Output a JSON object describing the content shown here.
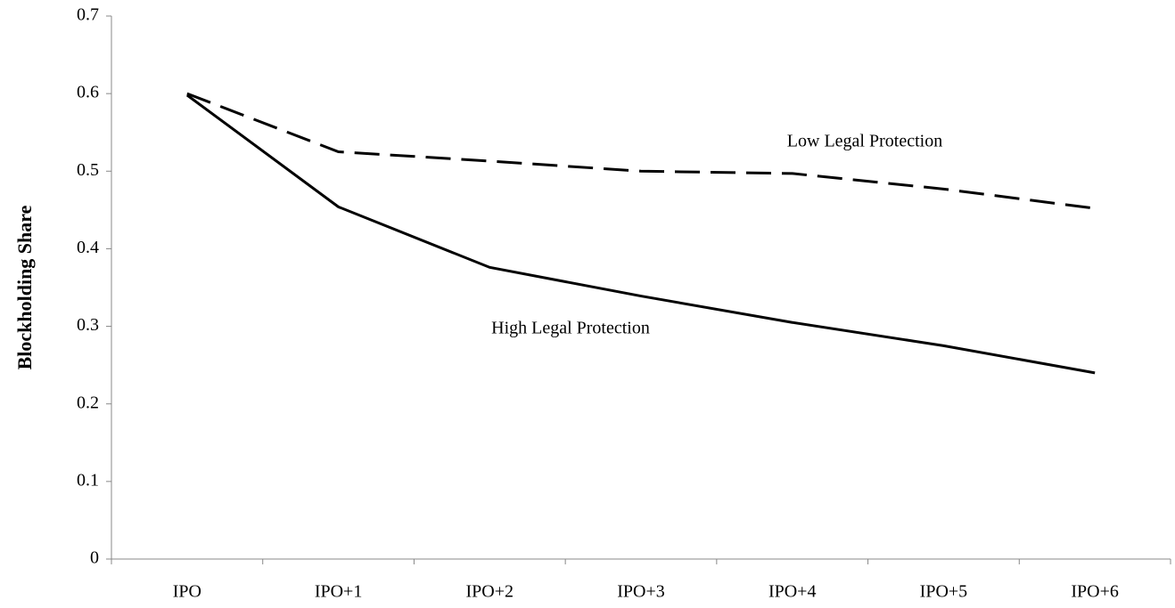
{
  "chart_data": {
    "type": "line",
    "y_label": "Blockholding Share",
    "categories": [
      "IPO",
      "IPO+1",
      "IPO+2",
      "IPO+3",
      "IPO+4",
      "IPO+5",
      "IPO+6"
    ],
    "series": [
      {
        "name": "Low Legal Protection",
        "color": "#000000",
        "dashed": true,
        "values": [
          0.6,
          0.525,
          0.513,
          0.5,
          0.497,
          0.477,
          0.452
        ]
      },
      {
        "name": "High Legal Protection",
        "color": "#000000",
        "dashed": false,
        "values": [
          0.598,
          0.454,
          0.376,
          0.339,
          0.305,
          0.275,
          0.24
        ]
      }
    ],
    "ylim": [
      0,
      0.7
    ],
    "yticks": [
      0,
      0.1,
      0.2,
      0.3,
      0.4,
      0.5,
      0.6,
      0.7
    ],
    "grid": false
  }
}
